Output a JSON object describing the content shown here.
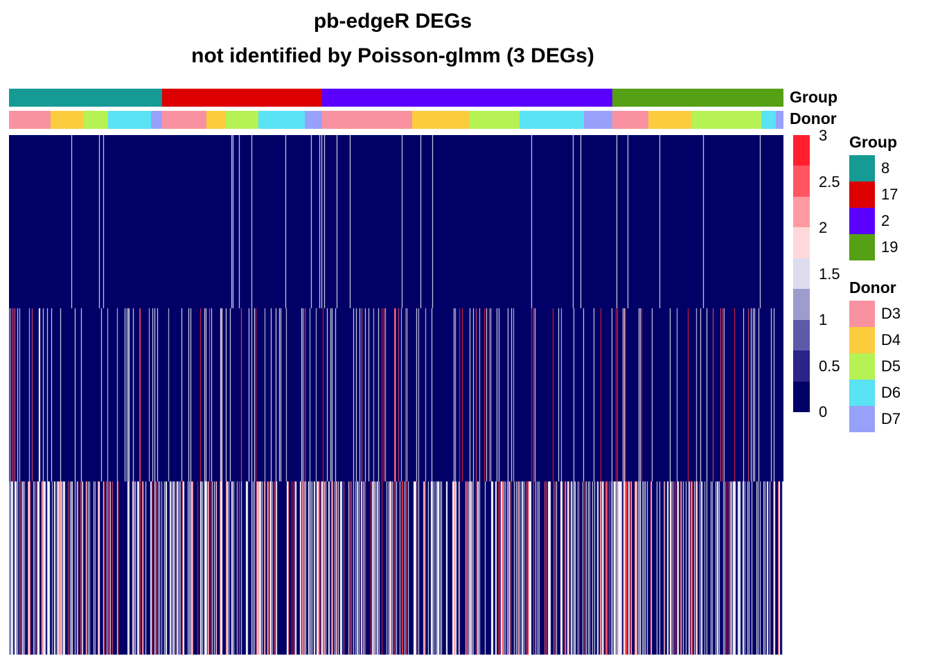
{
  "title_line1": "pb-edgeR DEGs",
  "title_line2": "not identified by Poisson-glmm (3 DEGs)",
  "annotation_labels": {
    "group": "Group",
    "donor": "Donor"
  },
  "colorbar": {
    "ticks": [
      "3",
      "2.5",
      "2",
      "1.5",
      "1",
      "0.5",
      "0"
    ],
    "colors": [
      "#ff1f2f",
      "#ff5561",
      "#ff9aa0",
      "#ffd8da",
      "#dcdcee",
      "#9e9ccc",
      "#5e5aa8",
      "#2a2388",
      "#000066"
    ]
  },
  "legend": {
    "group_title": "Group",
    "groups": [
      {
        "label": "8",
        "color": "#159a94"
      },
      {
        "label": "17",
        "color": "#dc0000"
      },
      {
        "label": "2",
        "color": "#5a00ff"
      },
      {
        "label": "19",
        "color": "#55a014"
      }
    ],
    "donor_title": "Donor",
    "donors": [
      {
        "label": "D3",
        "color": "#f992a0"
      },
      {
        "label": "D4",
        "color": "#facc3e"
      },
      {
        "label": "D5",
        "color": "#b6f254"
      },
      {
        "label": "D6",
        "color": "#5ae2f5"
      },
      {
        "label": "D7",
        "color": "#97a1f9"
      }
    ]
  },
  "chart_data": {
    "type": "heatmap",
    "title": "pb-edgeR DEGs\nnot identified by Poisson-glmm (3 DEGs)",
    "rows": 3,
    "value_range": [
      0,
      3
    ],
    "columns_total_fraction": 1.0,
    "group_segments": [
      {
        "group": "8",
        "fraction": 0.198
      },
      {
        "group": "17",
        "fraction": 0.206
      },
      {
        "group": "2",
        "fraction": 0.375
      },
      {
        "group": "19",
        "fraction": 0.221
      }
    ],
    "donor_segments": [
      {
        "donor": "D3",
        "fraction": 0.054
      },
      {
        "donor": "D4",
        "fraction": 0.042
      },
      {
        "donor": "D5",
        "fraction": 0.032
      },
      {
        "donor": "D6",
        "fraction": 0.055
      },
      {
        "donor": "D7",
        "fraction": 0.015
      },
      {
        "donor": "D3",
        "fraction": 0.057
      },
      {
        "donor": "D4",
        "fraction": 0.025
      },
      {
        "donor": "D5",
        "fraction": 0.042
      },
      {
        "donor": "D6",
        "fraction": 0.06
      },
      {
        "donor": "D7",
        "fraction": 0.022
      },
      {
        "donor": "D3",
        "fraction": 0.117
      },
      {
        "donor": "D4",
        "fraction": 0.073
      },
      {
        "donor": "D5",
        "fraction": 0.065
      },
      {
        "donor": "D6",
        "fraction": 0.083
      },
      {
        "donor": "D7",
        "fraction": 0.037
      },
      {
        "donor": "D3",
        "fraction": 0.047
      },
      {
        "donor": "D4",
        "fraction": 0.055
      },
      {
        "donor": "D5",
        "fraction": 0.09
      },
      {
        "donor": "D6",
        "fraction": 0.019
      },
      {
        "donor": "D7",
        "fraction": 0.01
      }
    ],
    "row_nonzero_fraction": [
      0.015,
      0.12,
      0.45
    ]
  }
}
